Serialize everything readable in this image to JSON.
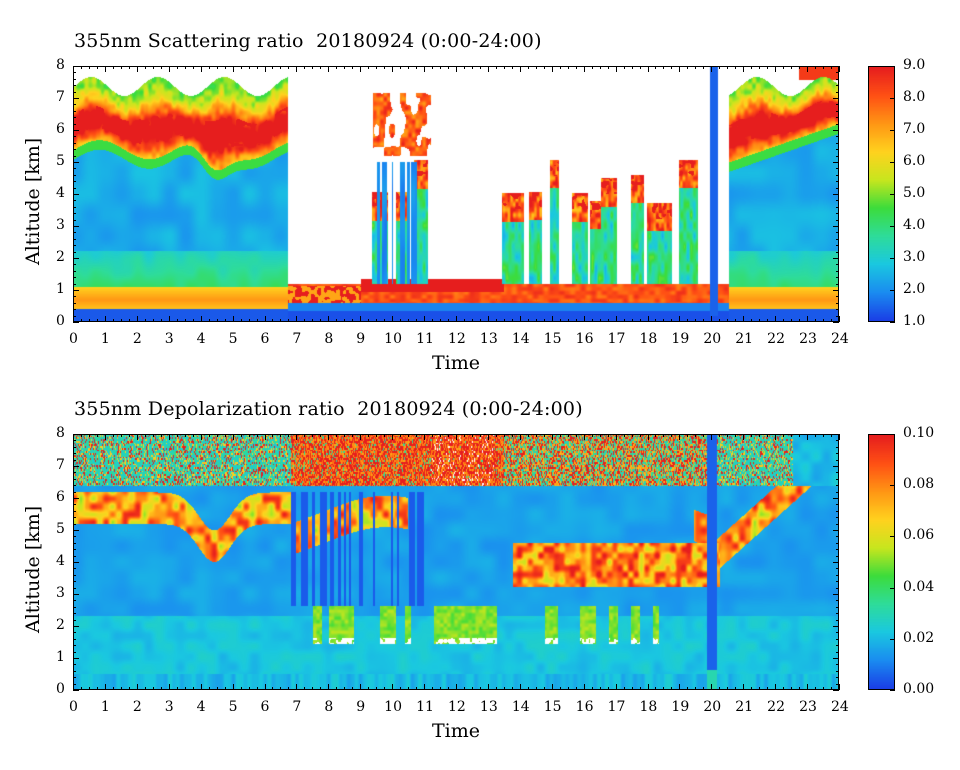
{
  "chart_data": [
    {
      "type": "heatmap",
      "title": "355nm Scattering ratio  20180924 (0:00-24:00)",
      "xlabel": "Time",
      "ylabel": "Altitude [km]",
      "xlim": [
        0,
        24
      ],
      "ylim": [
        0,
        8
      ],
      "x_ticks": [
        "0",
        "1",
        "2",
        "3",
        "4",
        "5",
        "6",
        "7",
        "8",
        "9",
        "10",
        "11",
        "12",
        "13",
        "14",
        "15",
        "16",
        "17",
        "18",
        "19",
        "20",
        "21",
        "22",
        "23",
        "24"
      ],
      "y_ticks": [
        "0",
        "1",
        "2",
        "3",
        "4",
        "5",
        "6",
        "7",
        "8"
      ],
      "colorbar": {
        "min": 1.0,
        "max": 9.0,
        "labels": [
          "1.0",
          "2.0",
          "3.0",
          "4.0",
          "5.0",
          "6.0",
          "7.0",
          "8.0",
          "9.0"
        ],
        "colors": [
          "#1a3fe6",
          "#1a8cf0",
          "#1ac8e0",
          "#2edc9a",
          "#3cdc3c",
          "#c8e61e",
          "#ffd21e",
          "#ff9614",
          "#ff5014",
          "#e61e1e"
        ]
      },
      "features": {
        "aerosol_layer_top_km": 1.0,
        "cirrus_base_km": 5.3,
        "cirrus_top_km": 7.3,
        "cloud_free_gap_hours": [
          6.7,
          9.0
        ],
        "low_cloud_periods_hours": [
          [
            7.0,
            13.5
          ],
          [
            13.5,
            20.0
          ]
        ],
        "precip_dropout_hour": 20.1
      }
    },
    {
      "type": "heatmap",
      "title": "355nm Depolarization ratio  20180924 (0:00-24:00)",
      "xlabel": "Time",
      "ylabel": "Altitude [km]",
      "xlim": [
        0,
        24
      ],
      "ylim": [
        0,
        8
      ],
      "x_ticks": [
        "0",
        "1",
        "2",
        "3",
        "4",
        "5",
        "6",
        "7",
        "8",
        "9",
        "10",
        "11",
        "12",
        "13",
        "14",
        "15",
        "16",
        "17",
        "18",
        "19",
        "20",
        "21",
        "22",
        "23",
        "24"
      ],
      "y_ticks": [
        "0",
        "1",
        "2",
        "3",
        "4",
        "5",
        "6",
        "7",
        "8"
      ],
      "colorbar": {
        "min": 0.0,
        "max": 0.1,
        "labels": [
          "0.00",
          "0.02",
          "0.04",
          "0.06",
          "0.08",
          "0.10"
        ],
        "colors": [
          "#1a3fe6",
          "#1a8cf0",
          "#1ac8e0",
          "#2edc9a",
          "#3cdc3c",
          "#c8e61e",
          "#ffd21e",
          "#ff9614",
          "#ff5014",
          "#e61e1e"
        ]
      },
      "features": {
        "cirrus_layer_km": [
          5.0,
          6.2
        ],
        "noisy_upper_region_km": [
          6.5,
          8.0
        ],
        "green_patch_km": [
          1.5,
          2.7
        ],
        "green_patch_hours": [
          11.2,
          13.3
        ]
      }
    }
  ]
}
